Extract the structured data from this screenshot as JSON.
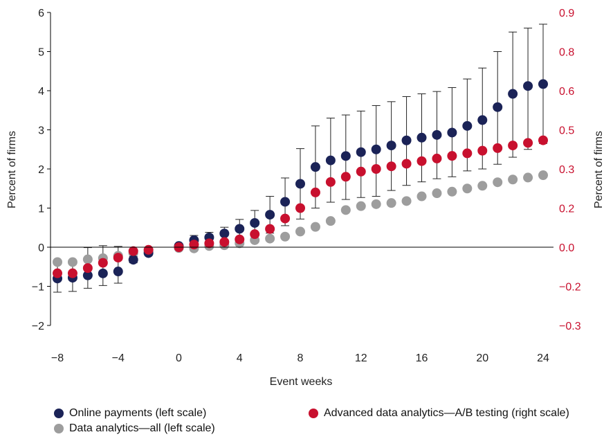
{
  "chart_data": {
    "type": "scatter",
    "xlabel": "Event weeks",
    "ylabel_left": "Percent of firms",
    "ylabel_right": "Percent of firms",
    "x_ticks": [
      "−8",
      "−4",
      "0",
      "4",
      "8",
      "12",
      "16",
      "20",
      "24"
    ],
    "y_left_ticks": [
      "−2",
      "−1",
      "0",
      "1",
      "2",
      "3",
      "4",
      "5",
      "6"
    ],
    "y_right_ticks": [
      "−0.3",
      "−0.2",
      "0.0",
      "0.2",
      "0.3",
      "0.5",
      "0.6",
      "0.8",
      "0.9"
    ],
    "xlim": [
      -8,
      24
    ],
    "ylim_left": [
      -2,
      6
    ],
    "ylim_right": [
      -0.3,
      0.9
    ],
    "colors": {
      "online_payments": "#1b2357",
      "data_analytics_all": "#9d9d9d",
      "ab_testing": "#c8102e",
      "right_axis": "#c8102e"
    },
    "series": [
      {
        "key": "online_payments",
        "name": "Online payments (left scale)",
        "axis": "left",
        "x": [
          -8,
          -7,
          -6,
          -5,
          -4,
          -3,
          -2,
          0,
          1,
          2,
          3,
          4,
          5,
          6,
          7,
          8,
          9,
          10,
          11,
          12,
          13,
          14,
          15,
          16,
          17,
          18,
          19,
          20,
          21,
          22,
          23,
          24
        ],
        "y": [
          -0.8,
          -0.78,
          -0.72,
          -0.67,
          -0.62,
          -0.32,
          -0.15,
          0.03,
          0.18,
          0.25,
          0.35,
          0.47,
          0.62,
          0.83,
          1.16,
          1.62,
          2.05,
          2.22,
          2.33,
          2.43,
          2.5,
          2.6,
          2.73,
          2.8,
          2.87,
          2.93,
          3.1,
          3.25,
          3.58,
          3.92,
          4.12,
          4.17
        ],
        "lo": [
          -1.15,
          -1.13,
          -1.05,
          -0.98,
          -0.92,
          -0.4,
          -0.2,
          -0.02,
          0.06,
          0.12,
          0.19,
          0.23,
          0.3,
          0.36,
          0.55,
          0.72,
          1.0,
          1.15,
          1.22,
          1.27,
          1.3,
          1.45,
          1.58,
          1.67,
          1.75,
          1.8,
          1.95,
          2.0,
          2.12,
          2.3,
          2.5,
          2.65
        ],
        "hi": [
          -0.43,
          -0.41,
          -0.01,
          0.04,
          0.02,
          -0.24,
          -0.1,
          0.08,
          0.3,
          0.38,
          0.51,
          0.71,
          0.94,
          1.3,
          1.77,
          2.52,
          3.1,
          3.3,
          3.38,
          3.48,
          3.62,
          3.72,
          3.85,
          3.92,
          3.98,
          4.08,
          4.3,
          4.58,
          5.0,
          5.5,
          5.6,
          5.7
        ]
      },
      {
        "key": "ab_testing",
        "name": "Advanced data analytics—A/B testing (right scale)",
        "axis": "right",
        "x": [
          -8,
          -7,
          -6,
          -5,
          -4,
          -3,
          -2,
          0,
          1,
          2,
          3,
          4,
          5,
          6,
          7,
          8,
          9,
          10,
          11,
          12,
          13,
          14,
          15,
          16,
          17,
          18,
          19,
          20,
          21,
          22,
          23,
          24
        ],
        "y": [
          -0.1,
          -0.1,
          -0.08,
          -0.06,
          -0.04,
          -0.015,
          -0.01,
          0.0,
          0.01,
          0.015,
          0.02,
          0.03,
          0.05,
          0.07,
          0.11,
          0.15,
          0.21,
          0.25,
          0.27,
          0.29,
          0.3,
          0.31,
          0.32,
          0.33,
          0.34,
          0.35,
          0.36,
          0.37,
          0.38,
          0.39,
          0.4,
          0.41
        ],
        "lo": [],
        "hi": []
      },
      {
        "key": "data_analytics_all",
        "name": "Data analytics—all (left scale)",
        "axis": "left",
        "x": [
          -8,
          -7,
          -6,
          -5,
          -4,
          -3,
          -2,
          0,
          1,
          2,
          3,
          4,
          5,
          6,
          7,
          8,
          9,
          10,
          11,
          12,
          13,
          14,
          15,
          16,
          17,
          18,
          19,
          20,
          21,
          22,
          23,
          24
        ],
        "y": [
          -0.38,
          -0.38,
          -0.31,
          -0.28,
          -0.22,
          -0.15,
          -0.1,
          -0.02,
          -0.03,
          0.03,
          0.05,
          0.1,
          0.18,
          0.22,
          0.27,
          0.4,
          0.52,
          0.67,
          0.95,
          1.05,
          1.1,
          1.13,
          1.18,
          1.3,
          1.38,
          1.42,
          1.5,
          1.57,
          1.66,
          1.73,
          1.78,
          1.84
        ],
        "lo": [],
        "hi": []
      }
    ]
  },
  "legend": [
    {
      "key": "online_payments",
      "label": "Online payments (left scale)"
    },
    {
      "key": "ab_testing",
      "label": "Advanced data analytics—A/B testing (right scale)"
    },
    {
      "key": "data_analytics_all",
      "label": "Data analytics—all (left scale)"
    }
  ]
}
